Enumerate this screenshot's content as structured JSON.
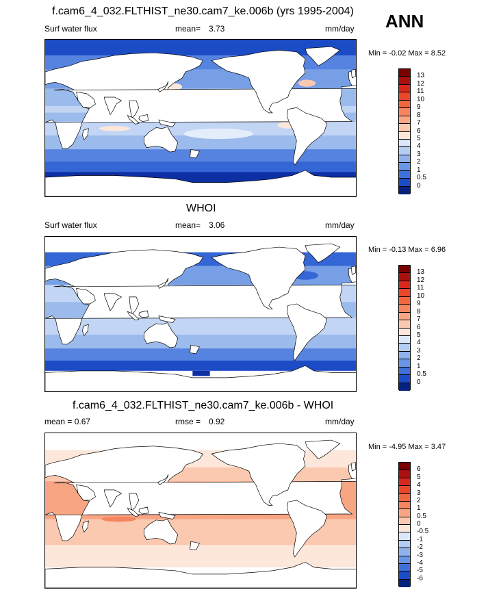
{
  "case_name": "f.cam6_4_032.FLTHIST_ne30.cam7_ke.006b",
  "season": "ANN",
  "colors": {
    "pos": [
      "#fde7da",
      "#fbc8b0",
      "#f8a584",
      "#f5855f",
      "#f0673f",
      "#e9462a",
      "#d9271e",
      "#a9100f",
      "#7a0000"
    ],
    "neg": [
      "#e4eefb",
      "#c2d5f4",
      "#9cbbed",
      "#779fe6",
      "#5683e0",
      "#3466d6",
      "#1c4bc6",
      "#0c2fa3",
      "#040d7a"
    ],
    "white": "#ffffff",
    "land": "#ffffff"
  },
  "panels": [
    {
      "title": "f.cam6_4_032.FLTHIST_ne30.cam7_ke.006b (yrs 1995-2004)",
      "left_label": "Surf water flux",
      "stat_label": "mean=",
      "stat_value": "3.73",
      "units": "mm/day",
      "minmax": "Min =  -0.02 Max =   8.52"
    },
    {
      "title": "WHOI",
      "left_label": "Surf water flux",
      "stat_label": "mean=",
      "stat_value": "3.06",
      "units": "mm/day",
      "minmax": "Min =  -0.13 Max =   6.96"
    },
    {
      "title": "f.cam6_4_032.FLTHIST_ne30.cam7_ke.006b - WHOI",
      "left_label": "mean =   0.67",
      "stat_label": "rmse =",
      "stat_value": "0.92",
      "units": "mm/day",
      "minmax": "Min =  -4.95 Max =   3.47"
    }
  ],
  "chart_data": [
    {
      "type": "heatmap",
      "title": "f.cam6_4_032.FLTHIST_ne30.cam7_ke.006b (yrs 1995-2004)",
      "variable": "Surf water flux",
      "units": "mm/day",
      "mean": 3.73,
      "min": -0.02,
      "max": 8.52,
      "colorbar_levels": [
        "13",
        "12",
        "11",
        "10",
        "9",
        "8",
        "7",
        "6",
        "5",
        "4",
        "3",
        "2",
        "1",
        "0.5",
        "0"
      ],
      "colorbar_colors": [
        "#7a0000",
        "#a9100f",
        "#d9271e",
        "#e9462a",
        "#f0673f",
        "#f5855f",
        "#f8a584",
        "#fbc8b0",
        "#fde7da",
        "#dbe7f8",
        "#b5cdf2",
        "#8fb2ec",
        "#6a95e4",
        "#3f6fdb",
        "#1c4bc6",
        "#07217f"
      ]
    },
    {
      "type": "heatmap",
      "title": "WHOI",
      "variable": "Surf water flux",
      "units": "mm/day",
      "mean": 3.06,
      "min": -0.13,
      "max": 6.96,
      "colorbar_levels": [
        "13",
        "12",
        "11",
        "10",
        "9",
        "8",
        "7",
        "6",
        "5",
        "4",
        "3",
        "2",
        "1",
        "0.5",
        "0"
      ],
      "colorbar_colors": [
        "#7a0000",
        "#a9100f",
        "#d9271e",
        "#e9462a",
        "#f0673f",
        "#f5855f",
        "#f8a584",
        "#fbc8b0",
        "#fde7da",
        "#dbe7f8",
        "#b5cdf2",
        "#8fb2ec",
        "#6a95e4",
        "#3f6fdb",
        "#1c4bc6",
        "#07217f"
      ]
    },
    {
      "type": "heatmap",
      "title": "f.cam6_4_032.FLTHIST_ne30.cam7_ke.006b - WHOI",
      "units": "mm/day",
      "mean": 0.67,
      "rmse": 0.92,
      "min": -4.95,
      "max": 3.47,
      "colorbar_levels": [
        "6",
        "5",
        "4",
        "3",
        "2",
        "1",
        "0.5",
        "0",
        "-0.5",
        "-1",
        "-2",
        "-3",
        "-4",
        "-5",
        "-6"
      ],
      "colorbar_colors": [
        "#7a0000",
        "#a9100f",
        "#d9271e",
        "#e9462a",
        "#f0673f",
        "#f5855f",
        "#f8a584",
        "#fbc8b0",
        "#fde7da",
        "#dbe7f8",
        "#b5cdf2",
        "#8fb2ec",
        "#6a95e4",
        "#3f6fdb",
        "#1c4bc6",
        "#07217f"
      ]
    }
  ]
}
